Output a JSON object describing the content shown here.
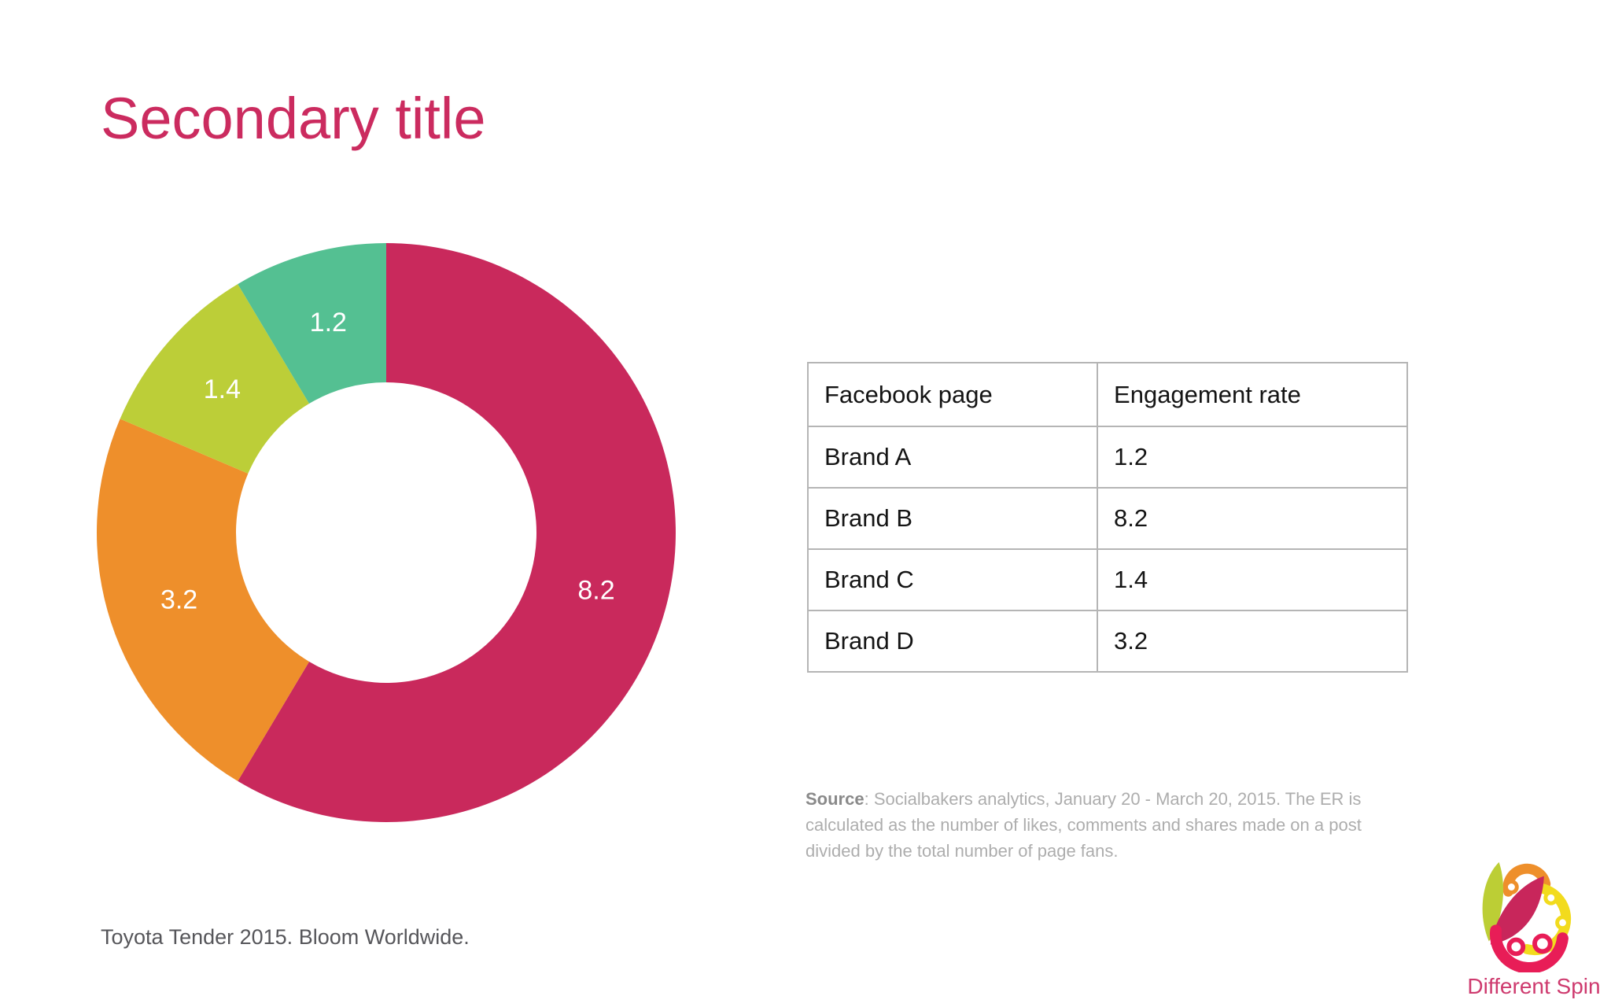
{
  "slide": {
    "title": "Secondary title",
    "footer": "Toyota Tender 2015. Bloom Worldwide.",
    "accent_color": "#C9295C",
    "background_color": "#FFFFFF"
  },
  "chart_data": {
    "type": "pie",
    "subtype": "donut",
    "direction": "clockwise",
    "start_angle_deg": 0,
    "inner_radius_ratio": 0.52,
    "label_color": "#FFFFFF",
    "categories": [
      "Brand B",
      "Brand D",
      "Brand C",
      "Brand A"
    ],
    "values": [
      8.2,
      3.2,
      1.4,
      1.2
    ],
    "labels": [
      "8.2",
      "3.2",
      "1.4",
      "1.2"
    ],
    "colors": [
      "#C9295C",
      "#EE8F2B",
      "#BCCE38",
      "#54C092"
    ]
  },
  "table": {
    "headers": [
      "Facebook page",
      "Engagement rate"
    ],
    "rows": [
      [
        "Brand A",
        "1.2"
      ],
      [
        "Brand B",
        "8.2"
      ],
      [
        "Brand C",
        "1.4"
      ],
      [
        "Brand D",
        "3.2"
      ]
    ]
  },
  "source": {
    "label": "Source",
    "text": ": Socialbakers analytics, January 20 - March 20, 2015. The ER is calculated as the number of likes, comments and shares made on a post divided by the total number of page fans."
  },
  "logo": {
    "text": "Different Spin",
    "colors": [
      "#BCCE35",
      "#C8265B",
      "#EE8F2B",
      "#F2DB1D",
      "#E81D57"
    ]
  }
}
